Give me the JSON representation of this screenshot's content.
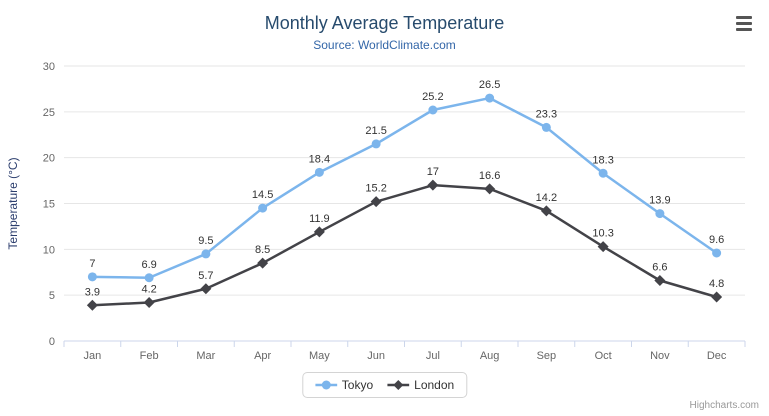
{
  "chart_data": {
    "type": "line",
    "title": "Monthly Average Temperature",
    "subtitle": "Source: WorldClimate.com",
    "xlabel": "",
    "ylabel": "Temperature (°C)",
    "ylim": [
      0,
      30
    ],
    "yticks": [
      0,
      5,
      10,
      15,
      20,
      25,
      30
    ],
    "grid": true,
    "legend_position": "bottom",
    "credits": "Highcharts.com",
    "categories": [
      "Jan",
      "Feb",
      "Mar",
      "Apr",
      "May",
      "Jun",
      "Jul",
      "Aug",
      "Sep",
      "Oct",
      "Nov",
      "Dec"
    ],
    "series": [
      {
        "name": "Tokyo",
        "color": "#7cb5ec",
        "marker": "circle",
        "values": [
          7,
          6.9,
          9.5,
          14.5,
          18.4,
          21.5,
          25.2,
          26.5,
          23.3,
          18.3,
          13.9,
          9.6
        ]
      },
      {
        "name": "London",
        "color": "#434348",
        "marker": "diamond",
        "values": [
          3.9,
          4.2,
          5.7,
          8.5,
          11.9,
          15.2,
          17,
          16.6,
          14.2,
          10.3,
          6.6,
          4.8
        ]
      }
    ],
    "colors": {
      "title": "#274b6d",
      "subtitle": "#3366a8",
      "axis_title": "#2c3e6e",
      "axis_labels": "#666666",
      "data_labels": "#333333",
      "grid": "#e6e6e6",
      "axis_line": "#ccd6eb",
      "menu_icon": "#555555",
      "credits": "#999999"
    }
  }
}
